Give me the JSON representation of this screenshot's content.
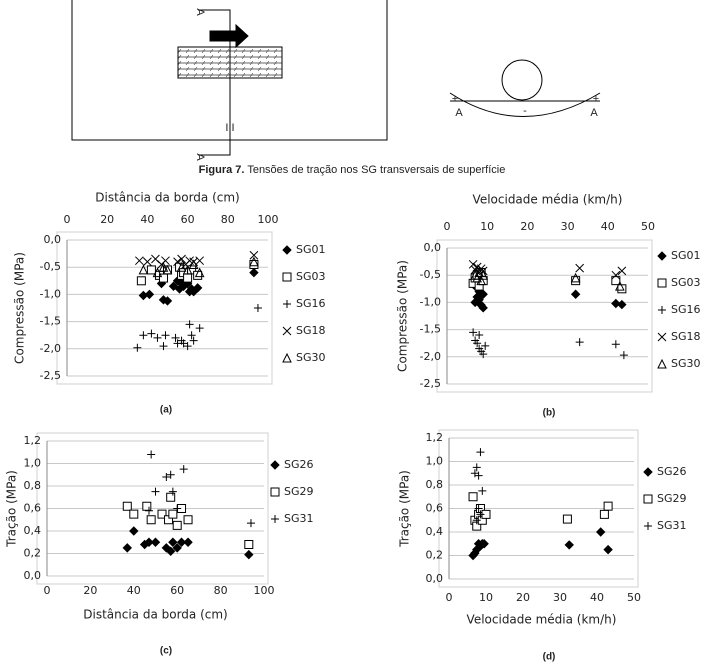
{
  "figure": {
    "caption_number": "Figura 7.",
    "caption_text": " Tensões de tração nos SG transversais de superfície",
    "diagram": {
      "section_top": "A",
      "section_bottom": "A",
      "cut_mark": "I I",
      "left_plus": "+",
      "left_a": "A",
      "minus": "-",
      "right_a": "A",
      "right_plus": "+"
    }
  },
  "chart_data": [
    {
      "type": "scatter",
      "label": "(a)",
      "x_label": "Distância da borda (cm)",
      "y_label": "Compressão (MPa)",
      "x_axis": "top",
      "grid": true,
      "xlim": [
        0,
        100
      ],
      "xticks": [
        0,
        20,
        40,
        60,
        80,
        100
      ],
      "ylim": [
        -2.5,
        0
      ],
      "yticks": [
        {
          "value": 0,
          "label": "0,0"
        },
        {
          "value": -0.5,
          "label": "-0,5"
        },
        {
          "value": -1,
          "label": "-1,0"
        },
        {
          "value": -1.5,
          "label": "-1,5"
        },
        {
          "value": -2,
          "label": "-2,0"
        },
        {
          "value": -2.5,
          "label": "-2,5"
        }
      ],
      "series": [
        {
          "name": "SG01",
          "marker": "diamond",
          "color": "#000000",
          "x": [
            38,
            41,
            47,
            48,
            50,
            53,
            55,
            56,
            57,
            58,
            60,
            61,
            62,
            63,
            65,
            93
          ],
          "values": [
            -1.02,
            -1.0,
            -0.8,
            -1.1,
            -1.12,
            -0.85,
            -0.75,
            -0.9,
            -0.8,
            -0.85,
            -0.8,
            -0.95,
            -0.9,
            -0.95,
            -0.88,
            -0.6
          ]
        },
        {
          "name": "SG03",
          "marker": "square",
          "color": "#000000",
          "x": [
            37,
            42,
            46,
            48,
            50,
            56,
            57,
            58,
            60,
            62,
            65,
            93
          ],
          "values": [
            -0.75,
            -0.55,
            -0.65,
            -0.7,
            -0.55,
            -0.5,
            -0.65,
            -0.6,
            -0.7,
            -0.55,
            -0.65,
            -0.45
          ]
        },
        {
          "name": "SG16",
          "marker": "plus",
          "color": "#000000",
          "x": [
            35,
            38,
            42,
            45,
            48,
            49,
            54,
            55,
            57,
            58,
            60,
            61,
            62,
            63,
            66,
            95
          ],
          "values": [
            -1.98,
            -1.75,
            -1.72,
            -1.8,
            -1.95,
            -1.75,
            -1.8,
            -1.9,
            -1.85,
            -1.9,
            -1.95,
            -1.55,
            -1.75,
            -1.85,
            -1.62,
            -1.25
          ]
        },
        {
          "name": "SG18",
          "marker": "cross",
          "color": "#000000",
          "x": [
            36,
            40,
            44,
            47,
            49,
            55,
            57,
            59,
            61,
            63,
            66,
            93
          ],
          "values": [
            -0.38,
            -0.4,
            -0.35,
            -0.45,
            -0.38,
            -0.4,
            -0.35,
            -0.45,
            -0.38,
            -0.4,
            -0.38,
            -0.28
          ]
        },
        {
          "name": "SG30",
          "marker": "triangle",
          "color": "#000000",
          "x": [
            38,
            45,
            48,
            50,
            57,
            60,
            63,
            66,
            93
          ],
          "values": [
            -0.55,
            -0.6,
            -0.5,
            -0.55,
            -0.5,
            -0.55,
            -0.45,
            -0.6,
            -0.4
          ]
        }
      ]
    },
    {
      "type": "scatter",
      "label": "(b)",
      "x_label": "Velocidade média (km/h)",
      "y_label": "Compressão (MPa)",
      "x_axis": "top",
      "grid": true,
      "xlim": [
        0,
        50
      ],
      "xticks": [
        0,
        10,
        20,
        30,
        40,
        50
      ],
      "ylim": [
        -2.5,
        0
      ],
      "yticks": [
        {
          "value": 0,
          "label": "0,0"
        },
        {
          "value": -0.5,
          "label": "-0,5"
        },
        {
          "value": -1,
          "label": "-1,0"
        },
        {
          "value": -1.5,
          "label": "-1,5"
        },
        {
          "value": -2,
          "label": "-2,0"
        },
        {
          "value": -2.5,
          "label": "-2,5"
        }
      ],
      "series": [
        {
          "name": "SG01",
          "marker": "diamond",
          "color": "#000000",
          "x": [
            7,
            7.5,
            8,
            8.5,
            9,
            7,
            8,
            9,
            32,
            42,
            43.5
          ],
          "values": [
            -1.0,
            -0.9,
            -0.95,
            -1.05,
            -0.85,
            -0.7,
            -0.8,
            -1.1,
            -0.85,
            -1.02,
            -1.04
          ]
        },
        {
          "name": "SG03",
          "marker": "square",
          "color": "#000000",
          "x": [
            6.5,
            7,
            8,
            9,
            7.5,
            8.5,
            32,
            42,
            43.5
          ],
          "values": [
            -0.65,
            -0.55,
            -0.7,
            -0.6,
            -0.5,
            -0.45,
            -0.6,
            -0.6,
            -0.75
          ]
        },
        {
          "name": "SG16",
          "marker": "plus",
          "color": "#000000",
          "x": [
            6.5,
            7,
            7.5,
            8,
            8.5,
            9,
            9.5,
            8,
            33,
            42,
            44
          ],
          "values": [
            -1.55,
            -1.7,
            -1.75,
            -1.85,
            -1.9,
            -1.95,
            -1.8,
            -1.6,
            -1.73,
            -1.77,
            -1.97
          ]
        },
        {
          "name": "SG18",
          "marker": "cross",
          "color": "#000000",
          "x": [
            6.5,
            7,
            7.5,
            8,
            8.5,
            9,
            33,
            42,
            43.5
          ],
          "values": [
            -0.3,
            -0.4,
            -0.35,
            -0.45,
            -0.38,
            -0.42,
            -0.37,
            -0.5,
            -0.42
          ]
        },
        {
          "name": "SG30",
          "marker": "triangle",
          "color": "#000000",
          "x": [
            7,
            7.5,
            8,
            8.5,
            9,
            32,
            43
          ],
          "values": [
            -0.5,
            -0.55,
            -0.45,
            -0.6,
            -0.5,
            -0.55,
            -0.7
          ]
        }
      ]
    },
    {
      "type": "scatter",
      "label": "(c)",
      "x_label": "Distância da borda (cm)",
      "y_label": "Tração (MPa)",
      "x_axis": "bottom",
      "grid": true,
      "xlim": [
        0,
        100
      ],
      "xticks": [
        0,
        20,
        40,
        60,
        80,
        100
      ],
      "ylim": [
        0,
        1.2
      ],
      "yticks": [
        {
          "value": 0,
          "label": "0,0"
        },
        {
          "value": 0.2,
          "label": "0,2"
        },
        {
          "value": 0.4,
          "label": "0,4"
        },
        {
          "value": 0.6,
          "label": "0,6"
        },
        {
          "value": 0.8,
          "label": "0,8"
        },
        {
          "value": 1,
          "label": "1,0"
        },
        {
          "value": 1.2,
          "label": "1,2"
        }
      ],
      "series": [
        {
          "name": "SG26",
          "marker": "diamond",
          "color": "#000000",
          "x": [
            37,
            40,
            45,
            47,
            50,
            55,
            57,
            58,
            60,
            62,
            65,
            93
          ],
          "values": [
            0.25,
            0.4,
            0.28,
            0.3,
            0.3,
            0.25,
            0.22,
            0.3,
            0.25,
            0.3,
            0.3,
            0.19
          ]
        },
        {
          "name": "SG29",
          "marker": "square",
          "color": "#000000",
          "x": [
            37,
            40,
            46,
            48,
            53,
            56,
            57,
            58,
            60,
            62,
            65,
            93
          ],
          "values": [
            0.62,
            0.55,
            0.62,
            0.5,
            0.55,
            0.5,
            0.7,
            0.55,
            0.45,
            0.6,
            0.5,
            0.28
          ]
        },
        {
          "name": "SG31",
          "marker": "plus",
          "color": "#000000",
          "x": [
            48,
            50,
            55,
            57,
            58,
            63,
            47,
            60,
            94
          ],
          "values": [
            1.08,
            0.75,
            0.88,
            0.9,
            0.75,
            0.95,
            0.58,
            0.6,
            0.47
          ]
        }
      ]
    },
    {
      "type": "scatter",
      "label": "(d)",
      "x_label": "Velocidade média (km/h)",
      "y_label": "Tração (MPa)",
      "x_axis": "bottom",
      "grid": true,
      "xlim": [
        0,
        50
      ],
      "xticks": [
        0,
        10,
        20,
        30,
        40,
        50
      ],
      "ylim": [
        0,
        1.2
      ],
      "yticks": [
        {
          "value": 0,
          "label": "0,0"
        },
        {
          "value": 0.2,
          "label": "0,2"
        },
        {
          "value": 0.4,
          "label": "0,4"
        },
        {
          "value": 0.6,
          "label": "0,6"
        },
        {
          "value": 0.8,
          "label": "0,8"
        },
        {
          "value": 1,
          "label": "1,0"
        },
        {
          "value": 1.2,
          "label": "1,2"
        }
      ],
      "series": [
        {
          "name": "SG26",
          "marker": "diamond",
          "color": "#000000",
          "x": [
            6.5,
            7,
            7.5,
            8,
            8.5,
            9,
            9.5,
            32.5,
            41,
            43
          ],
          "values": [
            0.2,
            0.22,
            0.25,
            0.3,
            0.28,
            0.3,
            0.3,
            0.29,
            0.4,
            0.25
          ]
        },
        {
          "name": "SG29",
          "marker": "square",
          "color": "#000000",
          "x": [
            6.5,
            7,
            7.5,
            8,
            8.5,
            9,
            10,
            32,
            42,
            43
          ],
          "values": [
            0.7,
            0.5,
            0.45,
            0.55,
            0.6,
            0.5,
            0.55,
            0.51,
            0.55,
            0.62
          ]
        },
        {
          "name": "SG31",
          "marker": "plus",
          "color": "#000000",
          "x": [
            7,
            7.5,
            8,
            8.5,
            9,
            8,
            7.5,
            8.5
          ],
          "values": [
            0.9,
            0.95,
            0.88,
            1.08,
            0.75,
            0.6,
            0.5,
            0.55
          ]
        }
      ]
    }
  ]
}
